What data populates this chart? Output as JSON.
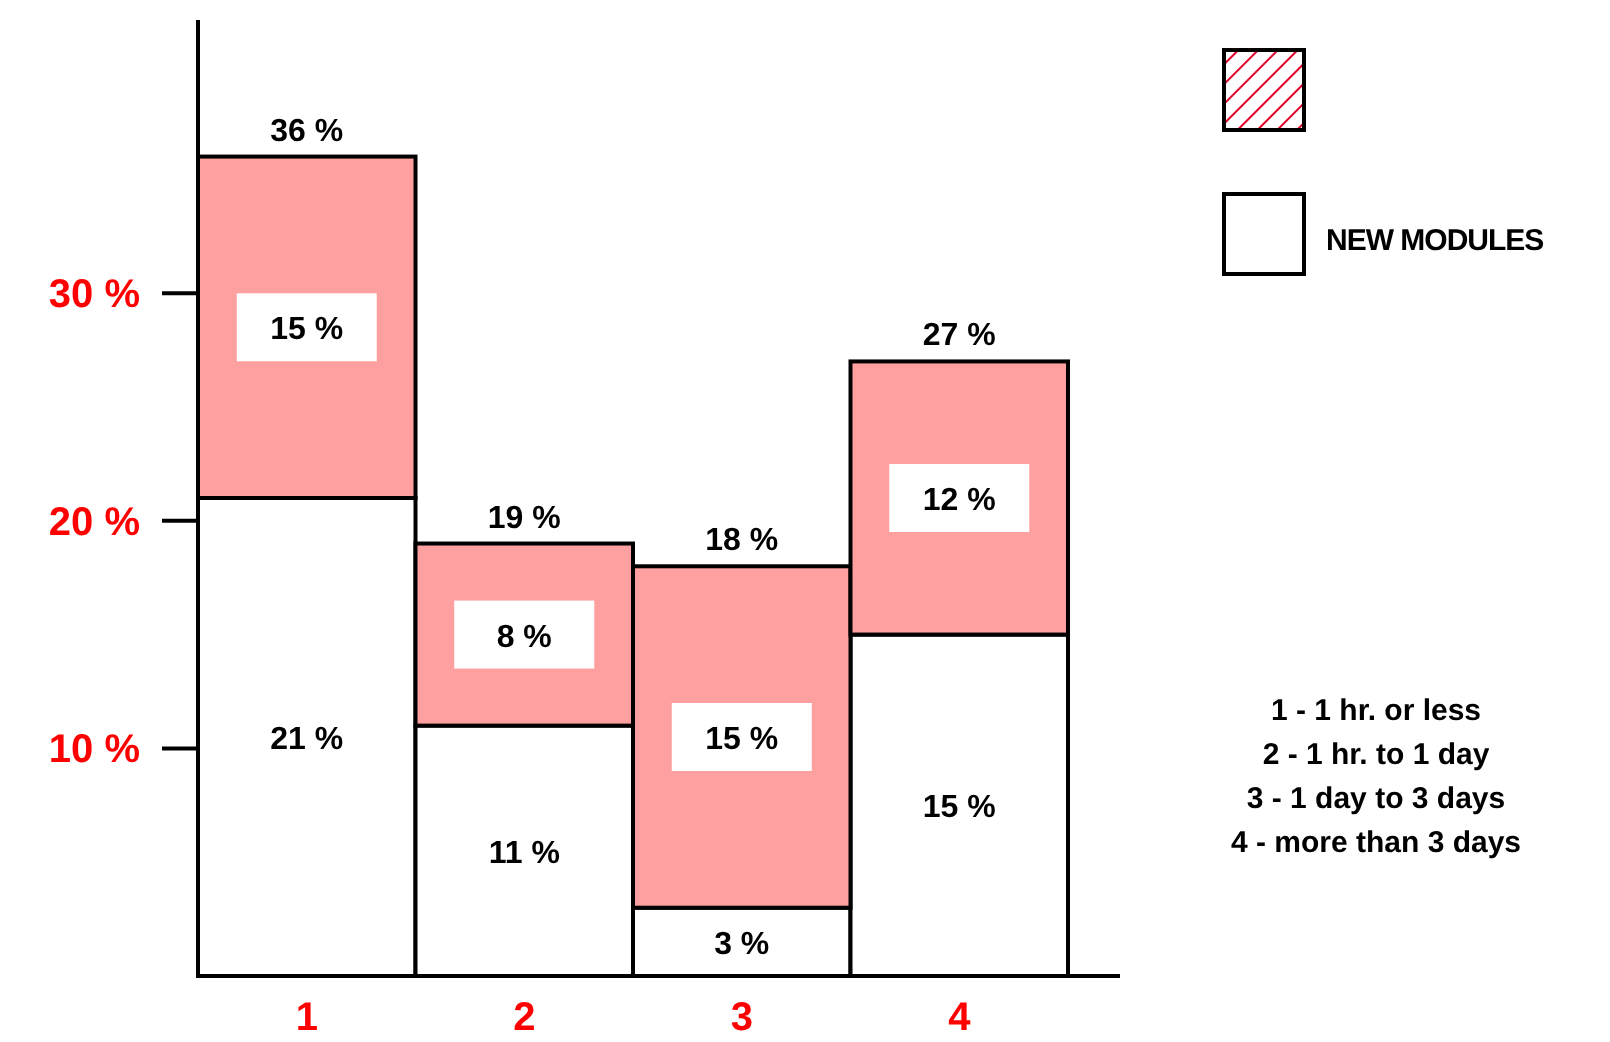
{
  "chart_data": {
    "type": "bar",
    "stacked": true,
    "categories": [
      "1",
      "2",
      "3",
      "4"
    ],
    "series": [
      {
        "name": "NEW MODULES",
        "color": "#ffffff",
        "values": [
          21,
          11,
          3,
          15
        ],
        "value_labels": [
          "21 %",
          "11 %",
          "3 %",
          "15 %"
        ]
      },
      {
        "color": "#ffa0a0",
        "values": [
          15,
          8,
          15,
          12
        ],
        "value_labels": [
          "15 %",
          "8 %",
          "15 %",
          "12 %"
        ]
      }
    ],
    "totals": [
      "36 %",
      "19 %",
      "18 %",
      "27 %"
    ],
    "ylim": [
      0,
      42
    ],
    "yticks": [
      {
        "value": 10,
        "label": "10 %"
      },
      {
        "value": 20,
        "label": "20 %"
      },
      {
        "value": 30,
        "label": "30 %"
      }
    ],
    "legend": "top right",
    "annotations": [
      "1 - 1 hr. or less",
      "2 - 1 hr. to 1 day",
      "3 - 1 day to 3 days",
      "4 - more than 3 days"
    ]
  }
}
